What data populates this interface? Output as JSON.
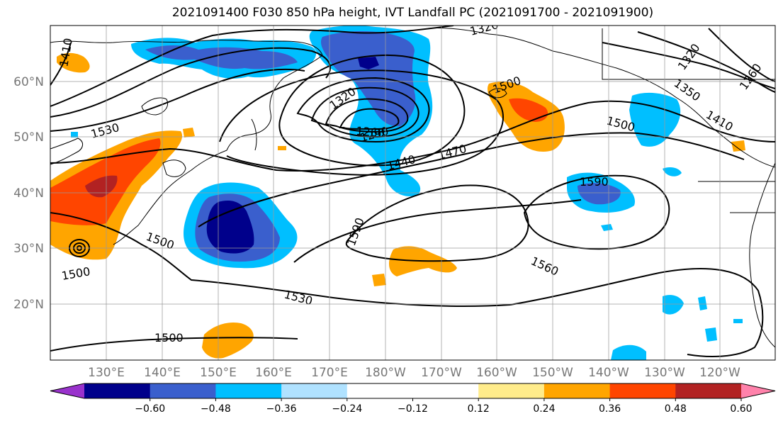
{
  "title": "2021091400 F030 850 hPa height, IVT Landfall PC (2021091700 - 2021091900)",
  "lat_labels": [
    "60°N",
    "50°N",
    "40°N",
    "30°N",
    "20°N"
  ],
  "lon_labels": [
    "130°E",
    "140°E",
    "150°E",
    "160°E",
    "170°E",
    "180°W",
    "170°W",
    "160°W",
    "150°W",
    "140°W",
    "130°W",
    "120°W"
  ],
  "contour_labels": [
    "1410",
    "1320",
    "1320",
    "1350",
    "1410",
    "1260",
    "1320",
    "1530",
    "1290",
    "1260",
    "1500",
    "1440",
    "1470",
    "1590",
    "1590",
    "1500",
    "1500",
    "1560",
    "1530",
    "1500"
  ],
  "colorbar": {
    "colors": [
      "#9932CC",
      "#00008B",
      "#3A5FCD",
      "#00BFFF",
      "#B0E2FF",
      "#FFFFFF",
      "#FFFFFF",
      "#FFEC8B",
      "#FFA500",
      "#FF4500",
      "#B22222",
      "#FF82AB"
    ],
    "tick_labels": [
      "−0.60",
      "−0.48",
      "−0.36",
      "−0.24",
      "−0.12",
      "0.12",
      "0.24",
      "0.36",
      "0.48",
      "0.60"
    ]
  }
}
